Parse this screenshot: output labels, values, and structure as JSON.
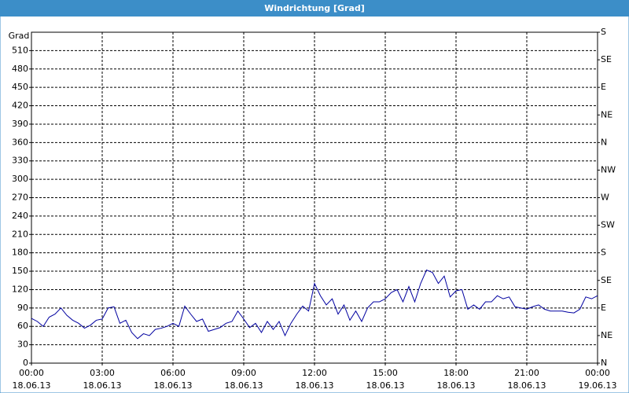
{
  "chart_data": {
    "type": "line",
    "title": "Windrichtung [Grad]",
    "y_label": "Grad",
    "x": [
      0,
      0.25,
      0.5,
      0.75,
      1,
      1.25,
      1.5,
      1.75,
      2,
      2.25,
      2.5,
      2.75,
      3,
      3.25,
      3.5,
      3.75,
      4,
      4.25,
      4.5,
      4.75,
      5,
      5.25,
      5.5,
      5.75,
      6,
      6.25,
      6.5,
      6.75,
      7,
      7.25,
      7.5,
      7.75,
      8,
      8.25,
      8.5,
      8.75,
      9,
      9.25,
      9.5,
      9.75,
      10,
      10.25,
      10.5,
      10.75,
      11,
      11.25,
      11.5,
      11.75,
      12,
      12.25,
      12.5,
      12.75,
      13,
      13.25,
      13.5,
      13.75,
      14,
      14.25,
      14.5,
      14.75,
      15,
      15.25,
      15.5,
      15.75,
      16,
      16.25,
      16.5,
      16.75,
      17,
      17.25,
      17.5,
      17.75,
      18,
      18.25,
      18.5,
      18.75,
      19,
      19.25,
      19.5,
      19.75,
      20,
      20.25,
      20.5,
      20.75,
      21,
      21.25,
      21.5,
      21.75,
      22,
      22.25,
      22.5,
      22.75,
      23,
      23.25,
      23.5,
      23.75,
      24
    ],
    "values": [
      73,
      68,
      60,
      75,
      80,
      90,
      78,
      70,
      65,
      57,
      62,
      70,
      72,
      90,
      92,
      65,
      70,
      50,
      40,
      48,
      45,
      55,
      57,
      60,
      65,
      60,
      93,
      80,
      68,
      72,
      52,
      55,
      58,
      65,
      68,
      85,
      72,
      58,
      65,
      50,
      68,
      55,
      68,
      45,
      65,
      80,
      93,
      85,
      130,
      110,
      95,
      105,
      80,
      95,
      70,
      85,
      68,
      90,
      100,
      100,
      105,
      115,
      120,
      100,
      125,
      100,
      130,
      152,
      148,
      130,
      142,
      108,
      118,
      120,
      88,
      95,
      88,
      100,
      100,
      110,
      105,
      108,
      92,
      90,
      88,
      92,
      95,
      88,
      85,
      85,
      85,
      83,
      82,
      88,
      108,
      105,
      110
    ],
    "color": "#0000a0",
    "xlim": [
      0,
      24
    ],
    "xticks": [
      {
        "value": 0,
        "label": "00:00",
        "date": "18.06.13"
      },
      {
        "value": 3,
        "label": "03:00",
        "date": "18.06.13"
      },
      {
        "value": 6,
        "label": "06:00",
        "date": "18.06.13"
      },
      {
        "value": 9,
        "label": "09:00",
        "date": "18.06.13"
      },
      {
        "value": 12,
        "label": "12:00",
        "date": "18.06.13"
      },
      {
        "value": 15,
        "label": "15:00",
        "date": "18.06.13"
      },
      {
        "value": 18,
        "label": "18:00",
        "date": "18.06.13"
      },
      {
        "value": 21,
        "label": "21:00",
        "date": "18.06.13"
      },
      {
        "value": 24,
        "label": "00:00",
        "date": "19.06.13"
      }
    ],
    "ylim": [
      0,
      540
    ],
    "yticks": [
      0,
      30,
      60,
      90,
      120,
      150,
      180,
      210,
      240,
      270,
      300,
      330,
      360,
      390,
      420,
      450,
      480,
      510
    ],
    "y2lim": [
      0,
      540
    ],
    "y2ticks": [
      {
        "value": 0,
        "label": "N"
      },
      {
        "value": 45,
        "label": "NE"
      },
      {
        "value": 90,
        "label": "E"
      },
      {
        "value": 135,
        "label": "SE"
      },
      {
        "value": 180,
        "label": "S"
      },
      {
        "value": 225,
        "label": "SW"
      },
      {
        "value": 270,
        "label": "W"
      },
      {
        "value": 315,
        "label": "NW"
      },
      {
        "value": 360,
        "label": "N"
      },
      {
        "value": 405,
        "label": "NE"
      },
      {
        "value": 450,
        "label": "E"
      },
      {
        "value": 495,
        "label": "SE"
      },
      {
        "value": 540,
        "label": "S"
      }
    ],
    "grid": true
  }
}
